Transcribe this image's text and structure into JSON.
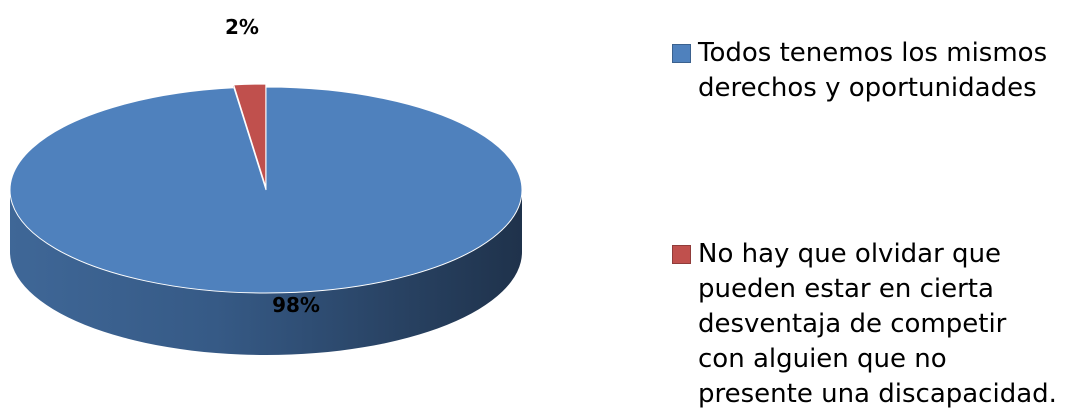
{
  "chart_data": {
    "type": "pie",
    "exploded": true,
    "three_d": true,
    "legend_position": "right",
    "slices": [
      {
        "label": "Todos tenemos los mismos derechos y oportunidades",
        "value": 98,
        "data_label": "98%",
        "color": "#4F81BD"
      },
      {
        "label": "No hay que olvidar que pueden estar en cierta desventaja de competir con alguien que no presente una discapacidad.",
        "value": 2,
        "data_label": "2%",
        "color": "#C0504D"
      }
    ]
  }
}
